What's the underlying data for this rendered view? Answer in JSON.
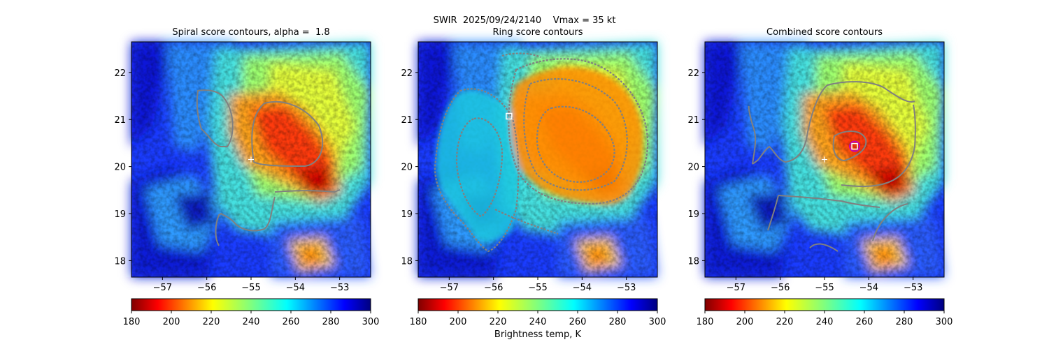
{
  "suptitle": "SWIR  2025/09/24/2140    Vmax = 35 kt",
  "colorbar_label": "Brightness temp, K",
  "colors": {
    "contour_gray": "#808080",
    "ring_cyan": "#1ec8e0",
    "ring_orange": "#ff8c00",
    "center_magenta": "#c000c0"
  },
  "chart_data": [
    {
      "type": "heatmap",
      "title": "Spiral score contours, alpha =  1.8",
      "xlabel": "",
      "ylabel": "",
      "xlim": [
        -57.7,
        -52.3
      ],
      "ylim": [
        17.65,
        22.65
      ],
      "xticks": [
        -57,
        -56,
        -55,
        -54,
        -53
      ],
      "yticks": [
        18,
        19,
        20,
        21,
        22
      ],
      "colorbar": {
        "colormap": "jet_r",
        "range": [
          180,
          300
        ],
        "ticks": [
          180,
          200,
          220,
          240,
          260,
          280,
          300
        ]
      },
      "markers": [
        {
          "symbol": "plus",
          "x": -55.0,
          "y": 20.15,
          "color": "#ffffff"
        }
      ]
    },
    {
      "type": "heatmap",
      "title": "Ring score contours",
      "xlabel": "",
      "ylabel": "",
      "xlim": [
        -57.7,
        -52.3
      ],
      "ylim": [
        17.65,
        22.65
      ],
      "xticks": [
        -57,
        -56,
        -55,
        -54,
        -53
      ],
      "yticks": [
        18,
        19,
        20,
        21,
        22
      ],
      "colorbar": {
        "colormap": "jet_r",
        "range": [
          180,
          300
        ],
        "ticks": [
          180,
          200,
          220,
          240,
          260,
          280,
          300
        ]
      },
      "markers": [
        {
          "symbol": "square",
          "x": -55.65,
          "y": 21.07,
          "color": "#ffffff"
        }
      ]
    },
    {
      "type": "heatmap",
      "title": "Combined score contours",
      "xlabel": "",
      "ylabel": "",
      "xlim": [
        -57.7,
        -52.3
      ],
      "ylim": [
        17.65,
        22.65
      ],
      "xticks": [
        -57,
        -56,
        -55,
        -54,
        -53
      ],
      "yticks": [
        18,
        19,
        20,
        21,
        22
      ],
      "colorbar": {
        "colormap": "jet_r",
        "range": [
          180,
          300
        ],
        "ticks": [
          180,
          200,
          220,
          240,
          260,
          280,
          300
        ]
      },
      "markers": [
        {
          "symbol": "plus",
          "x": -55.0,
          "y": 20.15,
          "color": "#ffffff"
        },
        {
          "symbol": "square",
          "x": -54.32,
          "y": 20.43,
          "color": "#c000c0"
        }
      ]
    }
  ]
}
